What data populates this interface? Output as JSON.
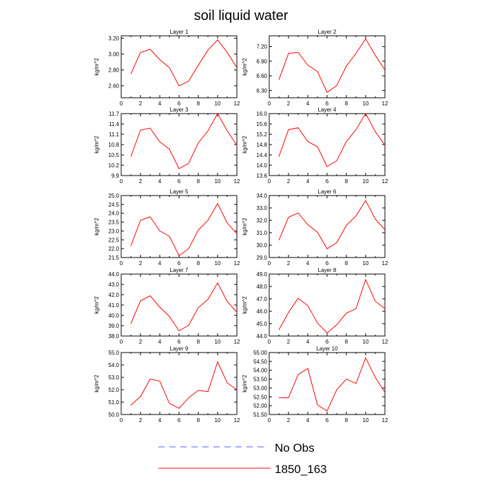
{
  "title": "soil liquid water",
  "line_color": "#ff0000",
  "no_obs_color": "#5555ff",
  "legend": {
    "no_obs_label": "No Obs",
    "model_label": "1850_163"
  },
  "chart_data": [
    {
      "type": "line",
      "title": "Layer 1",
      "ylabel": "kg/m^2",
      "x": [
        1,
        2,
        3,
        4,
        5,
        6,
        7,
        8,
        9,
        10,
        11,
        12
      ],
      "xlim": [
        0,
        12
      ],
      "xticks": [
        "0",
        "2",
        "4",
        "6",
        "8",
        "10",
        "12"
      ],
      "ylim": [
        2.45,
        3.23
      ],
      "yticks": [
        "2.60",
        "2.80",
        "3.00",
        "3.20"
      ],
      "series": [
        {
          "values": [
            2.75,
            3.02,
            3.06,
            2.93,
            2.83,
            2.6,
            2.66,
            2.86,
            3.05,
            3.18,
            3.02,
            2.83
          ]
        }
      ]
    },
    {
      "type": "line",
      "title": "Layer 2",
      "ylabel": "kg/m^2",
      "x": [
        1,
        2,
        3,
        4,
        5,
        6,
        7,
        8,
        9,
        10,
        11,
        12
      ],
      "xlim": [
        0,
        12
      ],
      "xticks": [
        "0",
        "2",
        "4",
        "6",
        "8",
        "10",
        "12"
      ],
      "ylim": [
        6.15,
        7.42
      ],
      "yticks": [
        "6.30",
        "6.60",
        "6.90",
        "7.20"
      ],
      "series": [
        {
          "values": [
            6.52,
            7.06,
            7.08,
            6.82,
            6.69,
            6.26,
            6.4,
            6.8,
            7.06,
            7.36,
            7.02,
            6.72
          ]
        }
      ]
    },
    {
      "type": "line",
      "title": "Layer 3",
      "ylabel": "kg/m^2",
      "x": [
        1,
        2,
        3,
        4,
        5,
        6,
        7,
        8,
        9,
        10,
        11,
        12
      ],
      "xlim": [
        0,
        12
      ],
      "xticks": [
        "0",
        "2",
        "4",
        "6",
        "8",
        "10",
        "12"
      ],
      "ylim": [
        9.9,
        11.7
      ],
      "yticks": [
        "9.9",
        "10.2",
        "10.5",
        "10.8",
        "11.1",
        "11.4",
        "11.7"
      ],
      "series": [
        {
          "values": [
            10.45,
            11.22,
            11.28,
            10.88,
            10.67,
            10.1,
            10.26,
            10.85,
            11.2,
            11.7,
            11.2,
            10.78
          ]
        }
      ]
    },
    {
      "type": "line",
      "title": "Layer 4",
      "ylabel": "kg/m^2",
      "x": [
        1,
        2,
        3,
        4,
        5,
        6,
        7,
        8,
        9,
        10,
        11,
        12
      ],
      "xlim": [
        0,
        12
      ],
      "xticks": [
        "0",
        "2",
        "4",
        "6",
        "8",
        "10",
        "12"
      ],
      "ylim": [
        13.6,
        16.0
      ],
      "yticks": [
        "13.6",
        "14.0",
        "14.4",
        "14.8",
        "15.2",
        "15.6",
        "16.0"
      ],
      "series": [
        {
          "values": [
            14.33,
            15.38,
            15.45,
            14.92,
            14.72,
            13.95,
            14.18,
            14.92,
            15.38,
            16.0,
            15.3,
            14.78
          ]
        }
      ]
    },
    {
      "type": "line",
      "title": "Layer 5",
      "ylabel": "kg/m^2",
      "x": [
        1,
        2,
        3,
        4,
        5,
        6,
        7,
        8,
        9,
        10,
        11,
        12
      ],
      "xlim": [
        0,
        12
      ],
      "xticks": [
        "0",
        "2",
        "4",
        "6",
        "8",
        "10",
        "12"
      ],
      "ylim": [
        21.5,
        25.0
      ],
      "yticks": [
        "21.5",
        "22.0",
        "22.5",
        "23.0",
        "23.5",
        "24.0",
        "24.5",
        "25.0"
      ],
      "series": [
        {
          "values": [
            22.15,
            23.6,
            23.8,
            23.0,
            22.7,
            21.6,
            22.0,
            23.05,
            23.6,
            24.55,
            23.45,
            22.85
          ]
        }
      ]
    },
    {
      "type": "line",
      "title": "Layer 6",
      "ylabel": "kg/m^2",
      "x": [
        1,
        2,
        3,
        4,
        5,
        6,
        7,
        8,
        9,
        10,
        11,
        12
      ],
      "xlim": [
        0,
        12
      ],
      "xticks": [
        "0",
        "2",
        "4",
        "6",
        "8",
        "10",
        "12"
      ],
      "ylim": [
        29.0,
        34.0
      ],
      "yticks": [
        "29.0",
        "30.0",
        "31.0",
        "32.0",
        "33.0",
        "34.0"
      ],
      "series": [
        {
          "values": [
            30.4,
            32.25,
            32.6,
            31.65,
            31.05,
            29.7,
            30.2,
            31.6,
            32.35,
            33.6,
            32.1,
            31.25
          ]
        }
      ]
    },
    {
      "type": "line",
      "title": "Layer 7",
      "ylabel": "kg/m^2",
      "x": [
        1,
        2,
        3,
        4,
        5,
        6,
        7,
        8,
        9,
        10,
        11,
        12
      ],
      "xlim": [
        0,
        12
      ],
      "xticks": [
        "0",
        "2",
        "4",
        "6",
        "8",
        "10",
        "12"
      ],
      "ylim": [
        38.0,
        44.0
      ],
      "yticks": [
        "38.0",
        "39.0",
        "40.0",
        "41.0",
        "42.0",
        "43.0",
        "44.0"
      ],
      "series": [
        {
          "values": [
            39.2,
            41.4,
            41.9,
            40.8,
            39.9,
            38.5,
            39.05,
            40.75,
            41.55,
            43.15,
            41.35,
            40.3
          ]
        }
      ]
    },
    {
      "type": "line",
      "title": "Layer 8",
      "ylabel": "kg/m^2",
      "x": [
        1,
        2,
        3,
        4,
        5,
        6,
        7,
        8,
        9,
        10,
        11,
        12
      ],
      "xlim": [
        0,
        12
      ],
      "xticks": [
        "0",
        "2",
        "4",
        "6",
        "8",
        "10",
        "12"
      ],
      "ylim": [
        44.0,
        49.0
      ],
      "yticks": [
        "44.0",
        "45.0",
        "46.0",
        "47.0",
        "48.0",
        "49.0"
      ],
      "series": [
        {
          "values": [
            44.5,
            45.9,
            47.05,
            46.45,
            45.05,
            44.25,
            44.9,
            45.85,
            46.2,
            48.55,
            46.8,
            46.2
          ]
        }
      ]
    },
    {
      "type": "line",
      "title": "Layer 9",
      "ylabel": "kg/m^2",
      "x": [
        1,
        2,
        3,
        4,
        5,
        6,
        7,
        8,
        9,
        10,
        11,
        12
      ],
      "xlim": [
        0,
        12
      ],
      "xticks": [
        "0",
        "2",
        "4",
        "6",
        "8",
        "10",
        "12"
      ],
      "ylim": [
        50.0,
        55.0
      ],
      "yticks": [
        "50.0",
        "51.0",
        "52.0",
        "53.0",
        "54.0",
        "55.0"
      ],
      "series": [
        {
          "values": [
            50.75,
            51.45,
            52.85,
            52.7,
            50.9,
            50.5,
            51.35,
            51.95,
            51.85,
            54.25,
            52.55,
            52.0
          ]
        }
      ]
    },
    {
      "type": "line",
      "title": "Layer 10",
      "ylabel": "kg/m^2",
      "x": [
        1,
        2,
        3,
        4,
        5,
        6,
        7,
        8,
        9,
        10,
        11,
        12
      ],
      "xlim": [
        0,
        12
      ],
      "xticks": [
        "0",
        "2",
        "4",
        "6",
        "8",
        "10",
        "12"
      ],
      "ylim": [
        51.5,
        55.0
      ],
      "yticks": [
        "51.50",
        "52.00",
        "52.50",
        "53.00",
        "53.50",
        "54.00",
        "54.50",
        "55.00"
      ],
      "series": [
        {
          "values": [
            52.45,
            52.45,
            53.75,
            54.1,
            52.05,
            51.7,
            52.9,
            53.5,
            53.25,
            54.7,
            53.6,
            52.75
          ]
        }
      ]
    }
  ]
}
